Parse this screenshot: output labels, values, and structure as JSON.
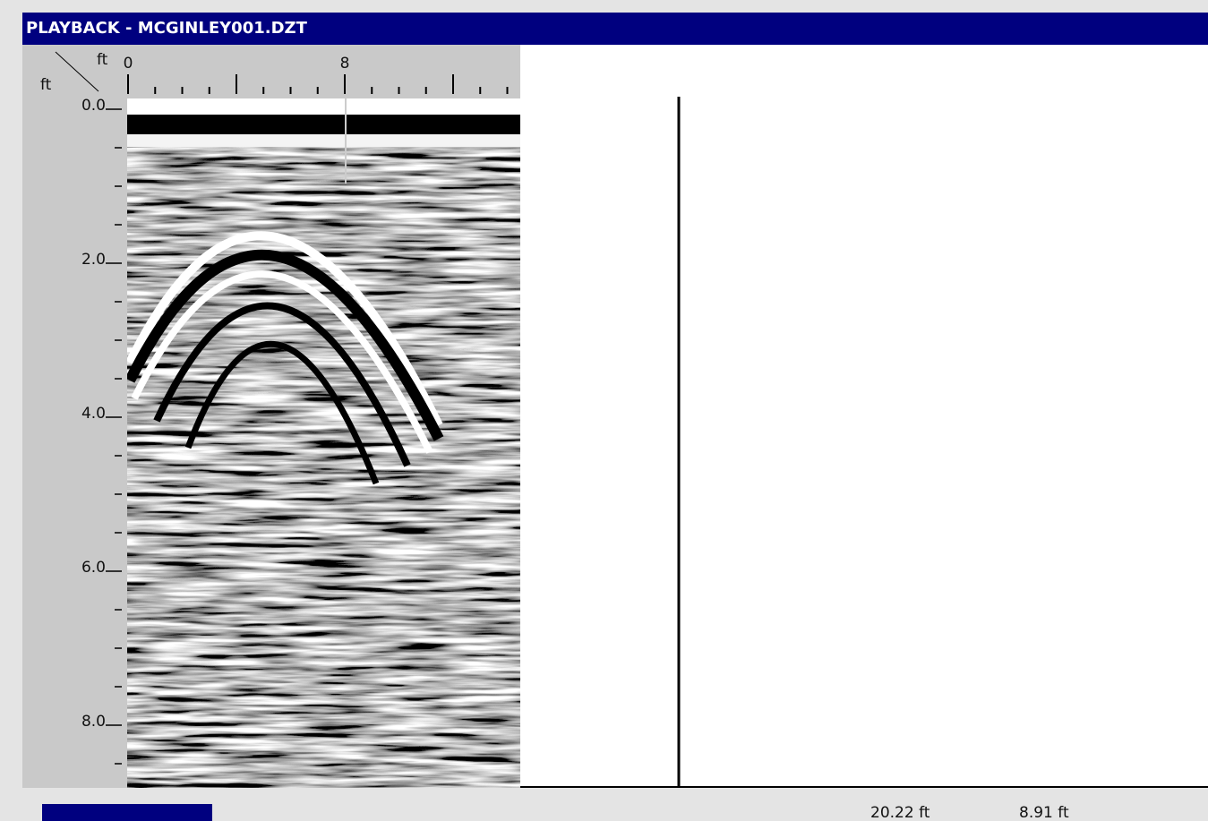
{
  "window": {
    "title": "PLAYBACK - MCGINLEY001.DZT"
  },
  "axes": {
    "x_unit": "ft",
    "y_unit": "ft",
    "x_ticks": [
      "0",
      "8"
    ],
    "y_ticks": [
      "0.0",
      "2.0",
      "4.0",
      "6.0",
      "8.0"
    ]
  },
  "status": {
    "distance": "20.22 ft",
    "depth": "8.91 ft"
  }
}
